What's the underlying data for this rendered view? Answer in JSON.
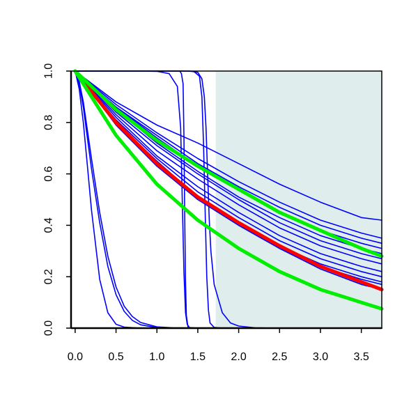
{
  "chart_data": {
    "type": "line",
    "title": "",
    "xlabel": "",
    "ylabel": "",
    "xlim": [
      -0.05,
      3.75
    ],
    "ylim": [
      0,
      1
    ],
    "x_ticks": [
      0,
      0.5,
      1,
      1.5,
      2,
      2.5,
      3,
      3.5
    ],
    "x_tick_labels": [
      "0.0",
      "0.5",
      "1.0",
      "1.5",
      "2.0",
      "2.5",
      "3.0",
      "3.5"
    ],
    "y_ticks": [
      0,
      0.2,
      0.4,
      0.6,
      0.8,
      1
    ],
    "y_tick_labels": [
      "0.0",
      "0.2",
      "0.4",
      "0.6",
      "0.8",
      "1.0"
    ],
    "grid": false,
    "legend": "none",
    "shaded_region": {
      "x_start": 1.72,
      "x_end": 3.75,
      "color": "#e0eded"
    },
    "series": [
      {
        "color": "#0000ff",
        "x": [
          0,
          0.5,
          1,
          1.5,
          2,
          2.5,
          3,
          3.5,
          3.75
        ],
        "y": [
          1,
          0.88,
          0.79,
          0.72,
          0.64,
          0.56,
          0.49,
          0.43,
          0.42
        ]
      },
      {
        "color": "#0000ff",
        "x": [
          0,
          0.5,
          1,
          1.5,
          2,
          2.5,
          3,
          3.5,
          3.75
        ],
        "y": [
          1,
          0.87,
          0.76,
          0.66,
          0.57,
          0.49,
          0.42,
          0.37,
          0.35
        ]
      },
      {
        "color": "#0000ff",
        "x": [
          0,
          0.5,
          1,
          1.5,
          2,
          2.5,
          3,
          3.5,
          3.75
        ],
        "y": [
          1,
          0.86,
          0.75,
          0.64,
          0.55,
          0.47,
          0.4,
          0.35,
          0.33
        ]
      },
      {
        "color": "#0000ff",
        "x": [
          0,
          0.5,
          1,
          1.5,
          2,
          2.5,
          3,
          3.5,
          3.75
        ],
        "y": [
          1,
          0.86,
          0.74,
          0.63,
          0.54,
          0.45,
          0.38,
          0.33,
          0.31
        ]
      },
      {
        "color": "#0000ff",
        "x": [
          0,
          0.5,
          1,
          1.5,
          2,
          2.5,
          3,
          3.5,
          3.75
        ],
        "y": [
          1,
          0.85,
          0.72,
          0.61,
          0.51,
          0.43,
          0.36,
          0.31,
          0.29
        ]
      },
      {
        "color": "#0000ff",
        "x": [
          0,
          0.5,
          1,
          1.5,
          2,
          2.5,
          3,
          3.5,
          3.75
        ],
        "y": [
          1,
          0.84,
          0.71,
          0.6,
          0.5,
          0.41,
          0.34,
          0.29,
          0.27
        ]
      },
      {
        "color": "#0000ff",
        "x": [
          0,
          0.5,
          1,
          1.5,
          2,
          2.5,
          3,
          3.5,
          3.75
        ],
        "y": [
          1,
          0.83,
          0.69,
          0.58,
          0.48,
          0.39,
          0.32,
          0.27,
          0.25
        ]
      },
      {
        "color": "#0000ff",
        "x": [
          0,
          0.5,
          1,
          1.5,
          2,
          2.5,
          3,
          3.5,
          3.75
        ],
        "y": [
          1,
          0.82,
          0.67,
          0.55,
          0.45,
          0.36,
          0.29,
          0.24,
          0.22
        ]
      },
      {
        "color": "#0000ff",
        "x": [
          0,
          0.5,
          1,
          1.5,
          2,
          2.5,
          3,
          3.5,
          3.75
        ],
        "y": [
          1,
          0.81,
          0.66,
          0.53,
          0.43,
          0.34,
          0.27,
          0.22,
          0.2
        ]
      },
      {
        "color": "#0000ff",
        "x": [
          0,
          0.5,
          1,
          1.5,
          2,
          2.5,
          3,
          3.5,
          3.75
        ],
        "y": [
          1,
          0.8,
          0.64,
          0.51,
          0.41,
          0.32,
          0.25,
          0.2,
          0.18
        ]
      },
      {
        "color": "#0000ff",
        "x": [
          0,
          0.5,
          1,
          1.5,
          2,
          2.5,
          3,
          3.5,
          3.75
        ],
        "y": [
          1,
          0.79,
          0.63,
          0.5,
          0.4,
          0.31,
          0.24,
          0.19,
          0.17
        ]
      },
      {
        "color": "#0000ff",
        "x": [
          0,
          0.5,
          1,
          1.5,
          2,
          2.5,
          3,
          3.5,
          3.75
        ],
        "y": [
          1,
          0.8,
          0.65,
          0.51,
          0.4,
          0.31,
          0.23,
          0.17,
          0.15
        ]
      },
      {
        "color": "#0000ff",
        "x": [
          0,
          0.05,
          0.1,
          0.15,
          0.2,
          0.3,
          0.4,
          0.5,
          0.6,
          0.8,
          1,
          1.5,
          3.75
        ],
        "y": [
          1,
          0.93,
          0.8,
          0.63,
          0.46,
          0.19,
          0.06,
          0.015,
          0.004,
          0,
          0,
          0,
          0
        ]
      },
      {
        "color": "#0000ff",
        "x": [
          0,
          0.05,
          0.1,
          0.2,
          0.3,
          0.4,
          0.5,
          0.6,
          0.7,
          0.8,
          1,
          1.2,
          3.75
        ],
        "y": [
          1,
          0.95,
          0.86,
          0.62,
          0.41,
          0.24,
          0.13,
          0.065,
          0.03,
          0.013,
          0.002,
          0,
          0
        ]
      },
      {
        "color": "#0000ff",
        "x": [
          0,
          0.05,
          0.1,
          0.2,
          0.3,
          0.4,
          0.5,
          0.6,
          0.7,
          0.8,
          1,
          1.2,
          3.75
        ],
        "y": [
          1,
          0.96,
          0.88,
          0.66,
          0.45,
          0.28,
          0.16,
          0.085,
          0.045,
          0.022,
          0.005,
          0.001,
          0
        ]
      },
      {
        "color": "#0000ff",
        "x": [
          0,
          0.8,
          1.0,
          1.15,
          1.25,
          1.29,
          1.31,
          1.33,
          1.35,
          1.37,
          1.4,
          1.5,
          3.75
        ],
        "y": [
          1,
          1,
          0.999,
          0.99,
          0.94,
          0.78,
          0.5,
          0.22,
          0.06,
          0.015,
          0.002,
          0,
          0
        ]
      },
      {
        "color": "#0000ff",
        "x": [
          0,
          1.2,
          1.28,
          1.3,
          1.32,
          1.33,
          1.34,
          1.35,
          1.36,
          1.38,
          1.42,
          3.75
        ],
        "y": [
          1,
          1,
          1,
          0.99,
          0.95,
          0.75,
          0.45,
          0.18,
          0.05,
          0.005,
          0,
          0
        ]
      },
      {
        "color": "#0000ff",
        "x": [
          0,
          1.3,
          1.45,
          1.52,
          1.55,
          1.57,
          1.59,
          1.61,
          1.63,
          1.65,
          1.7,
          1.8,
          3.75
        ],
        "y": [
          1,
          1,
          0.999,
          0.98,
          0.9,
          0.72,
          0.45,
          0.2,
          0.07,
          0.02,
          0.003,
          0,
          0
        ]
      },
      {
        "color": "#0000ff",
        "x": [
          0,
          1.4,
          1.5,
          1.55,
          1.58,
          1.6,
          1.62,
          1.64,
          1.66,
          1.7,
          1.8,
          1.9,
          2.0,
          2.2,
          2.5,
          3.75
        ],
        "y": [
          1,
          1,
          0.995,
          0.97,
          0.9,
          0.78,
          0.6,
          0.42,
          0.3,
          0.17,
          0.06,
          0.02,
          0.008,
          0.001,
          0,
          0
        ]
      },
      {
        "color": "#ff0000",
        "width": 5,
        "x": [
          0,
          0.5,
          1,
          1.5,
          2,
          2.5,
          3,
          3.5,
          3.75
        ],
        "y": [
          1,
          0.8,
          0.64,
          0.51,
          0.41,
          0.32,
          0.24,
          0.18,
          0.15
        ]
      },
      {
        "color": "#00ee00",
        "width": 5,
        "x": [
          0,
          0.5,
          1,
          1.5,
          2,
          2.5,
          3,
          3.5,
          3.75
        ],
        "y": [
          1,
          0.85,
          0.73,
          0.63,
          0.54,
          0.45,
          0.38,
          0.31,
          0.28
        ]
      },
      {
        "color": "#00ee00",
        "width": 5,
        "x": [
          0,
          0.5,
          1,
          1.5,
          2,
          2.5,
          3,
          3.5,
          3.75
        ],
        "y": [
          1,
          0.75,
          0.56,
          0.42,
          0.31,
          0.22,
          0.15,
          0.1,
          0.075
        ]
      }
    ]
  }
}
